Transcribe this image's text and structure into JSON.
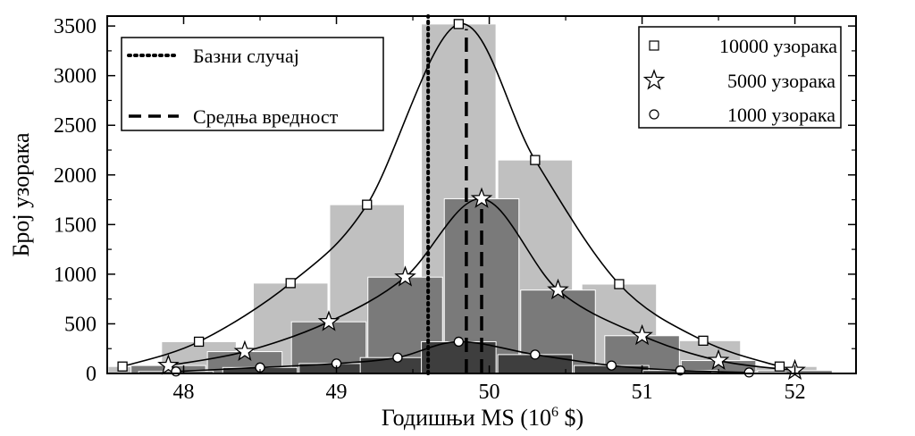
{
  "chart_data": {
    "type": "bar",
    "xlabel": "Годишњи MS (10",
    "xlabel_sup": "6",
    "xlabel_end": " $)",
    "ylabel": "Број узорака",
    "xlim": [
      47.5,
      52.4
    ],
    "ylim": [
      0,
      3600
    ],
    "x_ticks": [
      48,
      49,
      50,
      51,
      52
    ],
    "y_ticks": [
      0,
      500,
      1000,
      1500,
      2000,
      2500,
      3000,
      3500
    ],
    "grid": false,
    "bin_width": 0.5,
    "series": [
      {
        "name": "10000 узорака",
        "marker": "square",
        "bar_color": "#c0c0c0",
        "x": [
          47.6,
          48.1,
          48.7,
          49.2,
          49.8,
          50.3,
          50.85,
          51.4,
          51.9
        ],
        "values": [
          70,
          320,
          910,
          1700,
          3520,
          2150,
          900,
          330,
          70
        ]
      },
      {
        "name": "5000 узорака",
        "marker": "star",
        "bar_color": "#7a7a7a",
        "x": [
          47.9,
          48.4,
          48.95,
          49.45,
          49.95,
          50.45,
          51.0,
          51.5,
          52.0
        ],
        "values": [
          80,
          220,
          520,
          970,
          1760,
          840,
          380,
          130,
          30
        ]
      },
      {
        "name": "1000 узорака",
        "marker": "circle",
        "bar_color": "#3e3e3e",
        "x": [
          47.95,
          48.5,
          49.0,
          49.4,
          49.8,
          50.3,
          50.8,
          51.25,
          51.7
        ],
        "values": [
          20,
          60,
          100,
          160,
          320,
          190,
          80,
          30,
          10
        ]
      }
    ],
    "reference_lines": [
      {
        "name": "Базни случај",
        "x": 49.6,
        "style": "dotted"
      },
      {
        "name": "Средња вредност",
        "x": 49.85,
        "style": "dashed",
        "ymax": 3470
      },
      {
        "name": "Средња вредност",
        "x": 49.95,
        "style": "dashed",
        "ymax": 1740
      }
    ],
    "legend_left": [
      "Базни случај",
      "Средња вредност"
    ],
    "legend_right": [
      "10000 узорака",
      "5000 узорака",
      "1000 узорака"
    ]
  }
}
